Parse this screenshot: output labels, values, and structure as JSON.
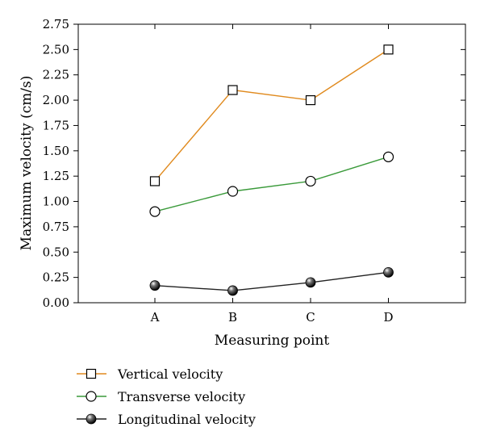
{
  "chart_data": {
    "type": "line",
    "xlabel": "Measuring point",
    "ylabel": "Maximum velocity (cm/s)",
    "categories": [
      "A",
      "B",
      "C",
      "D"
    ],
    "ylim": [
      0,
      2.75
    ],
    "yticks": [
      "0.00",
      "0.25",
      "0.50",
      "0.75",
      "1.00",
      "1.25",
      "1.50",
      "1.75",
      "2.00",
      "2.25",
      "2.50",
      "2.75"
    ],
    "grid": false,
    "legend_position": "bottom-left",
    "series": [
      {
        "name": "Vertical velocity",
        "values": [
          1.2,
          2.1,
          2.0,
          2.5
        ],
        "color": "#e08a1e",
        "marker": "square"
      },
      {
        "name": "Transverse velocity",
        "values": [
          0.9,
          1.1,
          1.2,
          1.44
        ],
        "color": "#3a9a3a",
        "marker": "circle"
      },
      {
        "name": "Longitudinal velocity",
        "values": [
          0.17,
          0.12,
          0.2,
          0.3
        ],
        "color": "#222222",
        "marker": "sphere"
      }
    ]
  }
}
